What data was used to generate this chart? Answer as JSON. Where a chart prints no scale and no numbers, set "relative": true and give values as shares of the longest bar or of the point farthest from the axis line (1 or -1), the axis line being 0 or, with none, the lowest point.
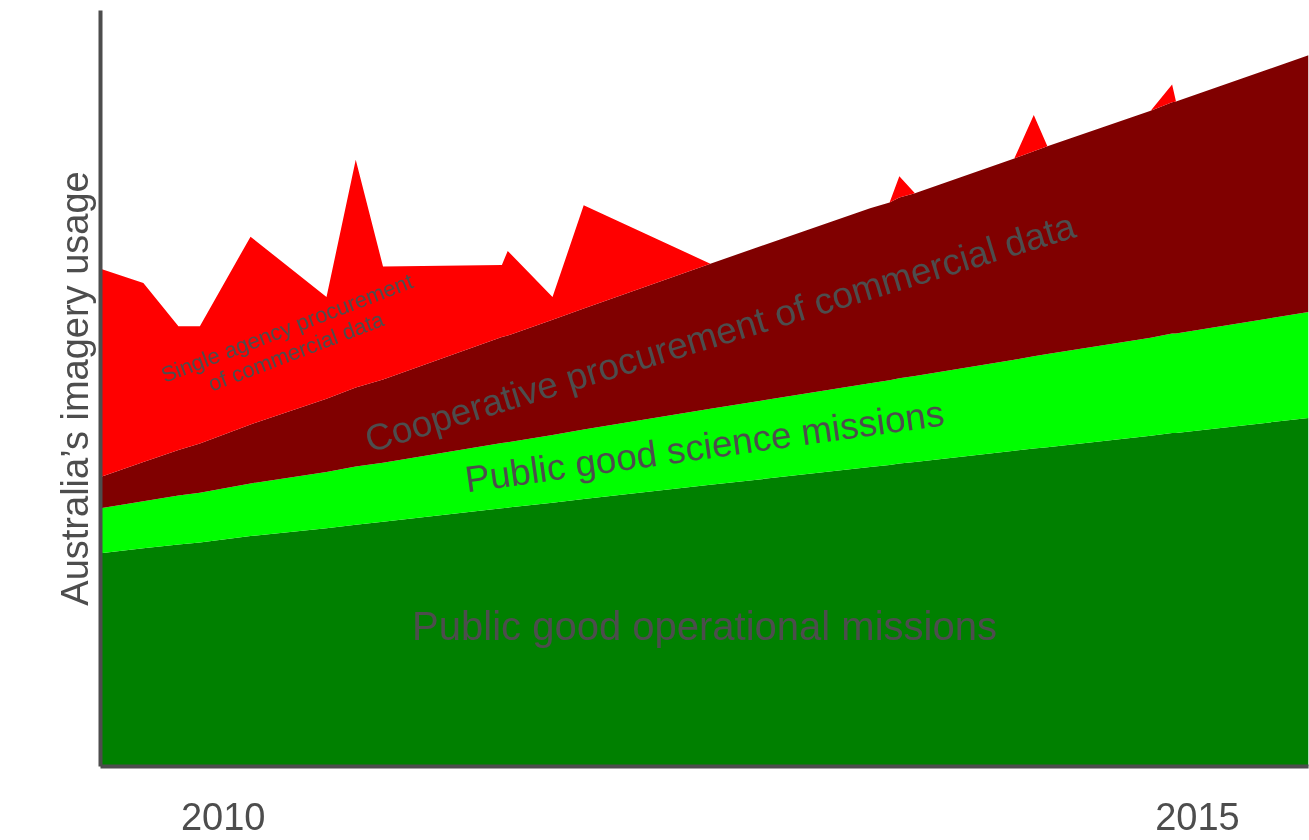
{
  "chart_data": {
    "type": "area",
    "stacked": true,
    "relative": true,
    "ylabel": "Australia’s imagery usage",
    "x": [
      2009.37,
      2009.59,
      2009.77,
      2009.88,
      2010.14,
      2010.53,
      2010.68,
      2010.82,
      2011.43,
      2011.46,
      2011.69,
      2011.85,
      2012.5,
      2013.32,
      2013.42,
      2013.47,
      2013.55,
      2014.06,
      2014.16,
      2014.23,
      2014.76,
      2014.87,
      2014.89,
      2015.57
    ],
    "xlim": [
      2009.37,
      2015.57
    ],
    "xticks": [
      2010,
      2015
    ],
    "grid": false,
    "series": [
      {
        "name": "Public good operational missions",
        "color": "#008000",
        "values": [
          0.3,
          0.307,
          0.312,
          0.315,
          0.324,
          0.335,
          0.34,
          0.344,
          0.363,
          0.364,
          0.371,
          0.376,
          0.396,
          0.421,
          0.424,
          0.426,
          0.428,
          0.444,
          0.447,
          0.449,
          0.465,
          0.469,
          0.469,
          0.49
        ]
      },
      {
        "name": "Public good science missions",
        "color": "#00ff00",
        "values": [
          0.063,
          0.066,
          0.069,
          0.07,
          0.074,
          0.079,
          0.082,
          0.083,
          0.092,
          0.092,
          0.095,
          0.098,
          0.107,
          0.118,
          0.119,
          0.12,
          0.121,
          0.128,
          0.13,
          0.131,
          0.138,
          0.14,
          0.14,
          0.149
        ]
      },
      {
        "name": "Cooperative procurement of commercial data",
        "color": "#800000",
        "values": [
          0.044,
          0.055,
          0.064,
          0.069,
          0.083,
          0.103,
          0.111,
          0.117,
          0.149,
          0.15,
          0.162,
          0.17,
          0.204,
          0.246,
          0.25,
          0.254,
          0.257,
          0.283,
          0.288,
          0.292,
          0.319,
          0.325,
          0.326,
          0.361
        ]
      },
      {
        "name": "Single agency procurement\nof commercial data",
        "color": "#ff0000",
        "values": [
          0.293,
          0.252,
          0.174,
          0.165,
          0.264,
          0.143,
          0.32,
          0.159,
          0.101,
          0.119,
          0.032,
          0.145,
          0,
          0,
          0,
          0.03,
          0,
          0,
          0.051,
          0,
          0,
          0.025,
          0,
          0
        ]
      }
    ]
  }
}
